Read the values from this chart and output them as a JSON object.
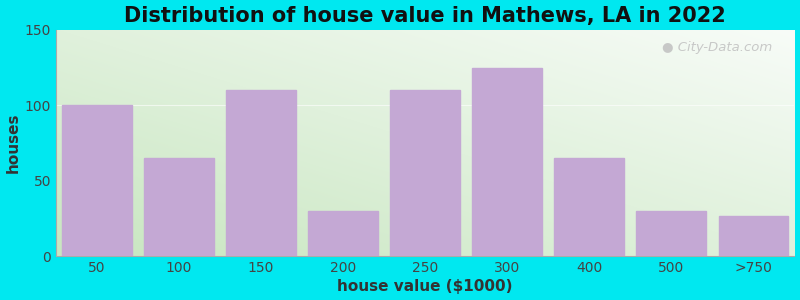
{
  "title": "Distribution of house value in Mathews, LA in 2022",
  "xlabel": "house value ($1000)",
  "ylabel": "houses",
  "categories": [
    "50",
    "100",
    "150",
    "200",
    "250",
    "300",
    "400",
    "500",
    ">750"
  ],
  "values": [
    100,
    65,
    110,
    30,
    110,
    125,
    65,
    30,
    27
  ],
  "bar_color": "#c4a8d4",
  "background_outer": "#00e8f0",
  "ylim": [
    0,
    150
  ],
  "yticks": [
    0,
    50,
    100,
    150
  ],
  "title_fontsize": 15,
  "label_fontsize": 11,
  "tick_fontsize": 10,
  "watermark": "City-Data.com",
  "grad_left": "#c8e6c0",
  "grad_right": "#f8fcf8",
  "grad_bottom": "#d0e8c8",
  "grad_top": "#f5faf5"
}
